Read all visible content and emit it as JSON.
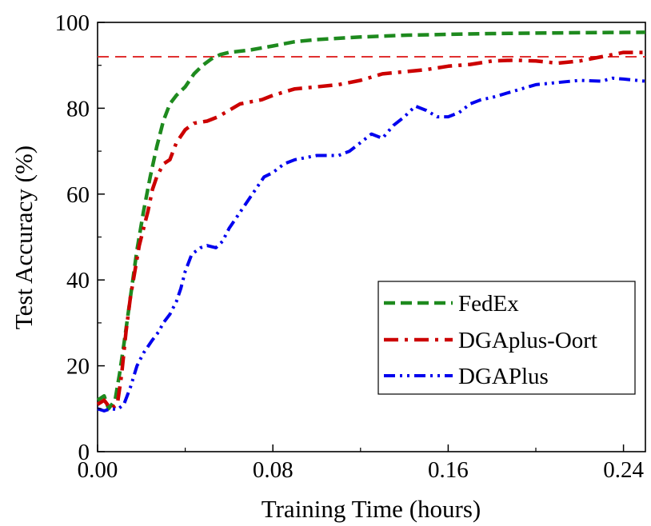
{
  "chart_data": {
    "type": "line",
    "title": "",
    "xlabel": "Training Time (hours)",
    "ylabel": "Test Accuracy (%)",
    "xlim": [
      0,
      0.25
    ],
    "ylim": [
      0,
      100
    ],
    "x_ticks": [
      0.0,
      0.08,
      0.16,
      0.24
    ],
    "x_tick_labels": [
      "0.00",
      "0.08",
      "0.16",
      "0.24"
    ],
    "y_ticks": [
      0,
      20,
      40,
      60,
      80,
      100
    ],
    "y_tick_labels": [
      "0",
      "20",
      "40",
      "60",
      "80",
      "100"
    ],
    "grid": false,
    "legend_position": "bottom-right",
    "reference_line": {
      "y": 92,
      "color": "#e03030"
    },
    "series": [
      {
        "name": "FedEx",
        "color": "#1e8a1e",
        "dash": "dashed",
        "points": [
          [
            0.0,
            12
          ],
          [
            0.003,
            13
          ],
          [
            0.005,
            10
          ],
          [
            0.008,
            12
          ],
          [
            0.01,
            18
          ],
          [
            0.012,
            25
          ],
          [
            0.015,
            36
          ],
          [
            0.018,
            47
          ],
          [
            0.021,
            56
          ],
          [
            0.024,
            64
          ],
          [
            0.027,
            71
          ],
          [
            0.03,
            77
          ],
          [
            0.033,
            81
          ],
          [
            0.036,
            83
          ],
          [
            0.04,
            85
          ],
          [
            0.044,
            88
          ],
          [
            0.048,
            90
          ],
          [
            0.052,
            91.5
          ],
          [
            0.056,
            92.5
          ],
          [
            0.06,
            93
          ],
          [
            0.065,
            93.3
          ],
          [
            0.07,
            93.6
          ],
          [
            0.08,
            94.5
          ],
          [
            0.09,
            95.5
          ],
          [
            0.1,
            96
          ],
          [
            0.12,
            96.6
          ],
          [
            0.14,
            97
          ],
          [
            0.16,
            97.2
          ],
          [
            0.18,
            97.4
          ],
          [
            0.2,
            97.5
          ],
          [
            0.22,
            97.6
          ],
          [
            0.25,
            97.7
          ]
        ]
      },
      {
        "name": "DGAplus-Oort",
        "color": "#cc0000",
        "dash": "dash-dot",
        "points": [
          [
            0.0,
            11
          ],
          [
            0.003,
            12
          ],
          [
            0.006,
            10
          ],
          [
            0.009,
            11
          ],
          [
            0.011,
            18
          ],
          [
            0.013,
            28
          ],
          [
            0.015,
            36
          ],
          [
            0.017,
            42
          ],
          [
            0.019,
            48
          ],
          [
            0.021,
            52
          ],
          [
            0.023,
            56
          ],
          [
            0.025,
            61
          ],
          [
            0.027,
            64
          ],
          [
            0.03,
            67
          ],
          [
            0.033,
            68
          ],
          [
            0.036,
            72
          ],
          [
            0.04,
            75
          ],
          [
            0.044,
            76.5
          ],
          [
            0.05,
            77
          ],
          [
            0.055,
            78
          ],
          [
            0.06,
            79.5
          ],
          [
            0.065,
            81
          ],
          [
            0.07,
            81.5
          ],
          [
            0.075,
            82
          ],
          [
            0.08,
            83
          ],
          [
            0.09,
            84.5
          ],
          [
            0.1,
            85
          ],
          [
            0.11,
            85.5
          ],
          [
            0.12,
            86.5
          ],
          [
            0.13,
            88
          ],
          [
            0.14,
            88.5
          ],
          [
            0.15,
            89
          ],
          [
            0.16,
            89.8
          ],
          [
            0.17,
            90.2
          ],
          [
            0.18,
            91
          ],
          [
            0.19,
            91.2
          ],
          [
            0.2,
            91
          ],
          [
            0.21,
            90.5
          ],
          [
            0.22,
            91
          ],
          [
            0.23,
            92
          ],
          [
            0.24,
            93
          ],
          [
            0.25,
            93
          ]
        ]
      },
      {
        "name": "DGAPlus",
        "color": "#0000ee",
        "dash": "dash-dot-dot",
        "points": [
          [
            0.0,
            10
          ],
          [
            0.003,
            9.5
          ],
          [
            0.006,
            10
          ],
          [
            0.009,
            9.8
          ],
          [
            0.012,
            11
          ],
          [
            0.015,
            15
          ],
          [
            0.018,
            20
          ],
          [
            0.021,
            23
          ],
          [
            0.025,
            26
          ],
          [
            0.028,
            28
          ],
          [
            0.03,
            30
          ],
          [
            0.033,
            32
          ],
          [
            0.036,
            35
          ],
          [
            0.038,
            38
          ],
          [
            0.04,
            42
          ],
          [
            0.043,
            46
          ],
          [
            0.047,
            47.5
          ],
          [
            0.05,
            48
          ],
          [
            0.054,
            47.5
          ],
          [
            0.057,
            49
          ],
          [
            0.06,
            52
          ],
          [
            0.064,
            55
          ],
          [
            0.068,
            58
          ],
          [
            0.072,
            61
          ],
          [
            0.076,
            64
          ],
          [
            0.08,
            65
          ],
          [
            0.085,
            67
          ],
          [
            0.09,
            68
          ],
          [
            0.095,
            68.5
          ],
          [
            0.1,
            69
          ],
          [
            0.11,
            69
          ],
          [
            0.115,
            70
          ],
          [
            0.12,
            72
          ],
          [
            0.125,
            74
          ],
          [
            0.13,
            73
          ],
          [
            0.135,
            76
          ],
          [
            0.14,
            78
          ],
          [
            0.145,
            80.5
          ],
          [
            0.15,
            79.5
          ],
          [
            0.155,
            78
          ],
          [
            0.16,
            78
          ],
          [
            0.165,
            79
          ],
          [
            0.17,
            81
          ],
          [
            0.175,
            82
          ],
          [
            0.18,
            82.5
          ],
          [
            0.19,
            84
          ],
          [
            0.2,
            85.5
          ],
          [
            0.21,
            86
          ],
          [
            0.22,
            86.5
          ],
          [
            0.23,
            86.3
          ],
          [
            0.235,
            87
          ],
          [
            0.24,
            86.8
          ],
          [
            0.25,
            86.3
          ]
        ]
      }
    ]
  }
}
